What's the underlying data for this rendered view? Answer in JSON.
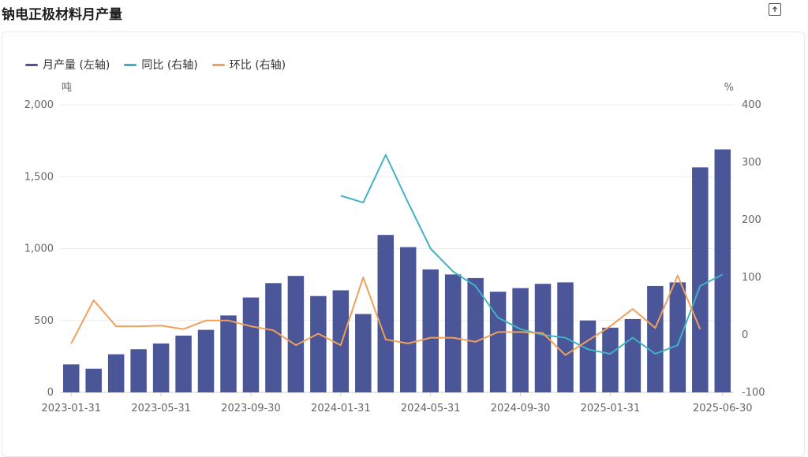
{
  "page_title": "钠电正极材料月产量",
  "export_icon": "export-icon",
  "colors": {
    "bar": "#4b5698",
    "yoy": "#3fb3c4",
    "mom": "#f0a05a",
    "grid": "#ececec",
    "axis": "#cfcfcf"
  },
  "legend": [
    {
      "label": "月产量 (左轴)",
      "key": "bar"
    },
    {
      "label": "同比 (右轴)",
      "key": "yoy"
    },
    {
      "label": "环比 (右轴)",
      "key": "mom"
    }
  ],
  "chart_data": {
    "type": "bar",
    "title": "钠电正极材料月产量",
    "left_axis": {
      "unit": "吨",
      "range": [
        0,
        2000
      ],
      "ticks": [
        "0",
        "500",
        "1,000",
        "1,500",
        "2,000"
      ],
      "tick_values": [
        0,
        500,
        1000,
        1500,
        2000
      ]
    },
    "right_axis": {
      "unit": "%",
      "range": [
        -100,
        400
      ],
      "ticks": [
        "-100",
        "0",
        "100",
        "200",
        "300",
        "400"
      ],
      "tick_values": [
        -100,
        0,
        100,
        200,
        300,
        400
      ]
    },
    "x_tick_labels": [
      {
        "index": 0,
        "label": "2023-01-31"
      },
      {
        "index": 4,
        "label": "2023-05-31"
      },
      {
        "index": 8,
        "label": "2023-09-30"
      },
      {
        "index": 12,
        "label": "2024-01-31"
      },
      {
        "index": 16,
        "label": "2024-05-31"
      },
      {
        "index": 20,
        "label": "2024-09-30"
      },
      {
        "index": 24,
        "label": "2025-01-31"
      },
      {
        "index": 29,
        "label": "2025-06-30"
      }
    ],
    "categories": [
      "2023-01-31",
      "2023-02-28",
      "2023-03-31",
      "2023-04-30",
      "2023-05-31",
      "2023-06-30",
      "2023-07-31",
      "2023-08-31",
      "2023-09-30",
      "2023-10-31",
      "2023-11-30",
      "2023-12-31",
      "2024-01-31",
      "2024-02-29",
      "2024-03-31",
      "2024-04-30",
      "2024-05-31",
      "2024-06-30",
      "2024-07-31",
      "2024-08-31",
      "2024-09-30",
      "2024-10-31",
      "2024-11-30",
      "2024-12-31",
      "2025-01-31",
      "2025-02-28",
      "2025-03-31",
      "2025-04-30",
      "2025-05-31",
      "2025-06-30"
    ],
    "series": [
      {
        "name": "月产量 (左轴)",
        "axis": "left",
        "type": "bar",
        "values": [
          195,
          165,
          265,
          300,
          340,
          395,
          435,
          535,
          660,
          760,
          810,
          670,
          710,
          545,
          1095,
          1010,
          855,
          820,
          795,
          700,
          725,
          755,
          765,
          500,
          450,
          510,
          740,
          765,
          1565,
          1690
        ]
      },
      {
        "name": "同比 (右轴)",
        "axis": "right",
        "type": "line",
        "values": [
          null,
          null,
          null,
          null,
          null,
          null,
          null,
          null,
          null,
          null,
          null,
          null,
          242,
          230,
          313,
          230,
          150,
          110,
          85,
          30,
          10,
          0,
          -5,
          -25,
          -33,
          -5,
          -33,
          -18,
          85,
          105
        ]
      },
      {
        "name": "环比 (右轴)",
        "axis": "right",
        "type": "line",
        "values": [
          -15,
          60,
          15,
          15,
          16,
          10,
          25,
          25,
          15,
          8,
          -18,
          2,
          -18,
          100,
          -8,
          -15,
          -5,
          -5,
          -12,
          5,
          5,
          3,
          -35,
          -10,
          15,
          45,
          12,
          103,
          10,
          null
        ]
      }
    ]
  }
}
